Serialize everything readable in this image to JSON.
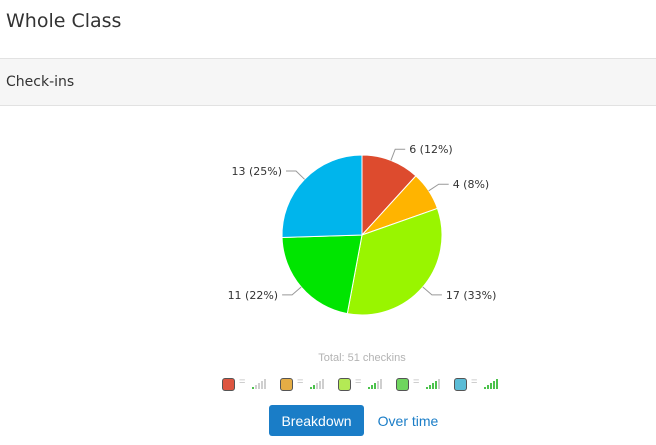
{
  "page": {
    "title": "Whole Class"
  },
  "section": {
    "title": "Check-ins"
  },
  "chart_data": {
    "type": "pie",
    "title": "",
    "slices": [
      {
        "label": "6 (12%)",
        "value": 6,
        "percent": 12,
        "color": "#dd4b2e"
      },
      {
        "label": "4 (8%)",
        "value": 4,
        "percent": 8,
        "color": "#ffb400"
      },
      {
        "label": "17 (33%)",
        "value": 17,
        "percent": 33,
        "color": "#99f500"
      },
      {
        "label": "11 (22%)",
        "value": 11,
        "percent": 22,
        "color": "#00e500"
      },
      {
        "label": "13 (25%)",
        "value": 13,
        "percent": 25,
        "color": "#00b5ec"
      }
    ],
    "total_label": "Total: 51 checkins",
    "legend": [
      {
        "color": "#dd5540",
        "symbol": "=",
        "level": 1
      },
      {
        "color": "#e5ad45",
        "symbol": "=",
        "level": 2
      },
      {
        "color": "#b4ea55",
        "symbol": "=",
        "level": 3
      },
      {
        "color": "#6fd55f",
        "symbol": "=",
        "level": 4
      },
      {
        "color": "#5bbcd6",
        "symbol": "=",
        "level": 5
      }
    ]
  },
  "actions": {
    "breakdown_label": "Breakdown",
    "over_time_label": "Over time"
  }
}
